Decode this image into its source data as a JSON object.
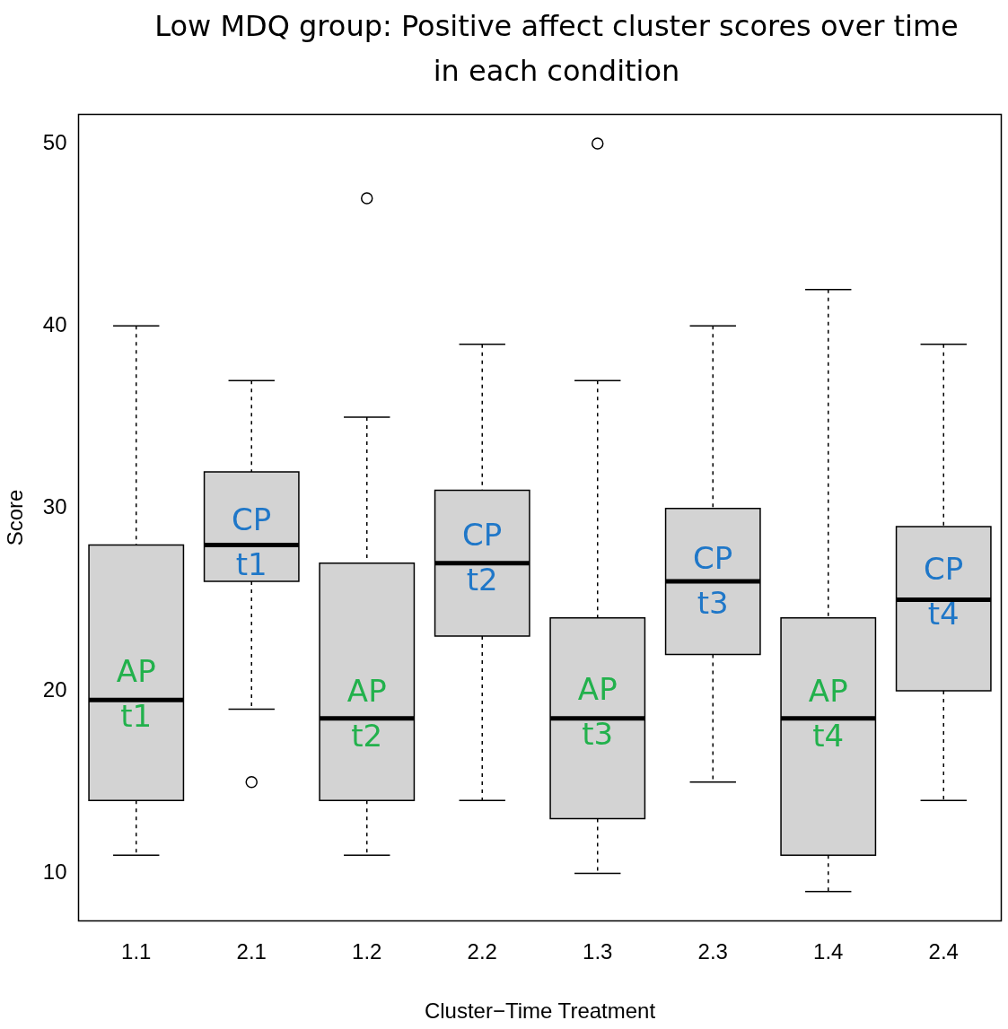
{
  "chart_data": {
    "type": "box",
    "title": "Low MDQ group: Positive affect cluster scores over time in each condition",
    "xlabel": "Cluster−Time Treatment",
    "ylabel": "Score",
    "categories": [
      "1.1",
      "2.1",
      "1.2",
      "2.2",
      "1.3",
      "2.3",
      "1.4",
      "2.4"
    ],
    "ylim": [
      7.4,
      51.6
    ],
    "yticks": [
      10,
      20,
      30,
      40,
      50
    ],
    "legend": false,
    "grid": false,
    "boxes": [
      {
        "low": 11,
        "q1": 14,
        "median": 19.5,
        "q3": 28,
        "high": 40
      },
      {
        "low": 19,
        "q1": 26,
        "median": 28,
        "q3": 32,
        "high": 37,
        "outliers": [
          15
        ]
      },
      {
        "low": 11,
        "q1": 14,
        "median": 18.5,
        "q3": 27,
        "high": 35,
        "outliers": [
          47
        ]
      },
      {
        "low": 14,
        "q1": 23,
        "median": 27,
        "q3": 31,
        "high": 39
      },
      {
        "low": 10,
        "q1": 13,
        "median": 18.5,
        "q3": 24,
        "high": 37,
        "outliers": [
          50
        ]
      },
      {
        "low": 15,
        "q1": 22,
        "median": 26,
        "q3": 30,
        "high": 40
      },
      {
        "low": 9,
        "q1": 11,
        "median": 18.5,
        "q3": 24,
        "high": 42
      },
      {
        "low": 14,
        "q1": 20,
        "median": 25,
        "q3": 29,
        "high": 39
      }
    ],
    "color": "#d3d3d3",
    "annotations": [
      {
        "text": "AP\nt1",
        "x": "1.1",
        "y": 19.7
      },
      {
        "text": "CP\nt1",
        "x": "2.1",
        "y": 28
      },
      {
        "text": "AP\nt2",
        "x": "1.2",
        "y": 18.6
      },
      {
        "text": "CP\nt2",
        "x": "2.2",
        "y": 27.2
      },
      {
        "text": "AP\nt3",
        "x": "1.3",
        "y": 18.7
      },
      {
        "text": "CP\nt3",
        "x": "2.3",
        "y": 25.9
      },
      {
        "text": "AP\nt4",
        "x": "1.4",
        "y": 18.6
      },
      {
        "text": "CP\nt4",
        "x": "2.4",
        "y": 25.3
      }
    ]
  }
}
